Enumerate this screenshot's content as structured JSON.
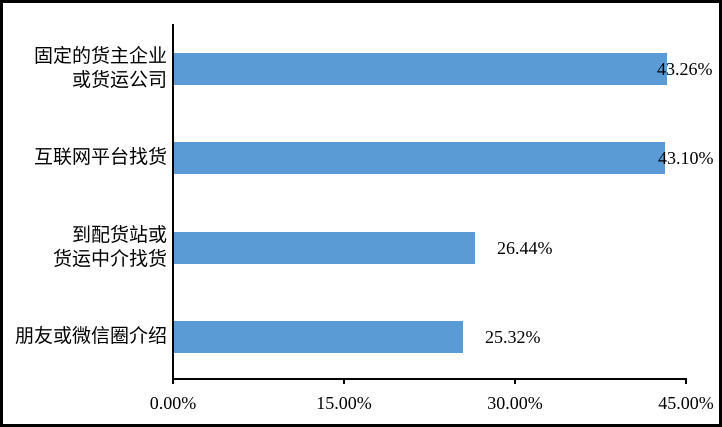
{
  "chart_data": {
    "type": "bar",
    "orientation": "horizontal",
    "title": "",
    "xlabel": "",
    "ylabel": "",
    "categories": [
      {
        "lines": [
          "固定的货主企业",
          "或货运公司"
        ]
      },
      {
        "lines": [
          "互联网平台找货"
        ]
      },
      {
        "lines": [
          "到配货站或",
          "货运中介找货"
        ]
      },
      {
        "lines": [
          "朋友或微信圈介绍"
        ]
      }
    ],
    "values": [
      43.26,
      43.1,
      26.44,
      25.32
    ],
    "data_labels": [
      "43.26%",
      "43.10%",
      "26.44%",
      "25.32%"
    ],
    "x_axis": {
      "range": [
        0,
        45
      ],
      "ticks": [
        {
          "value": 0,
          "label": "0.00%"
        },
        {
          "value": 15,
          "label": "15.00%"
        },
        {
          "value": 30,
          "label": "30.00%"
        },
        {
          "value": 45,
          "label": "45.00%"
        }
      ]
    },
    "grid": false,
    "legend": false
  },
  "colors": {
    "bar": "#5B9BD5",
    "axis": "#000000",
    "text": "#000000",
    "background": "#FFFFFF",
    "frame": "#000000"
  }
}
